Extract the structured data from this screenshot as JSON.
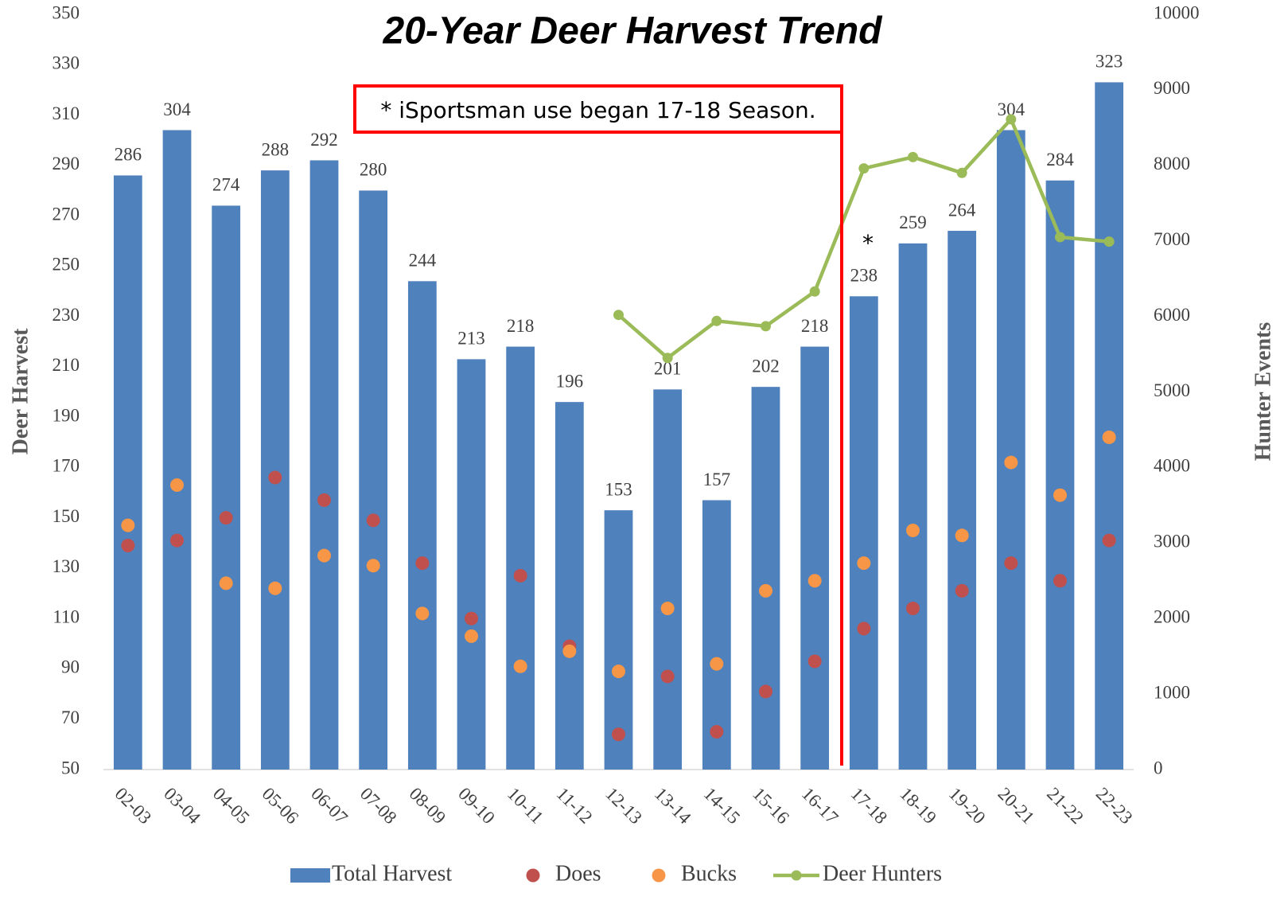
{
  "chart_data": {
    "type": "bar",
    "title": "20-Year Deer Harvest Trend",
    "ylabel": "Deer Harvest",
    "y2label": "Hunter Events",
    "categories": [
      "02-03",
      "03-04",
      "04-05",
      "05-06",
      "06-07",
      "07-08",
      "08-09",
      "09-10",
      "10-11",
      "11-12",
      "12-13",
      "13-14",
      "14-15",
      "15-16",
      "16-17",
      "17-18",
      "18-19",
      "19-20",
      "20-21",
      "21-22",
      "22-23"
    ],
    "series": [
      {
        "name": "Total Harvest",
        "type": "bar",
        "color": "#4f81bd",
        "values": [
          286,
          304,
          274,
          288,
          292,
          280,
          244,
          213,
          218,
          196,
          153,
          201,
          157,
          202,
          218,
          238,
          259,
          264,
          304,
          284,
          323
        ]
      },
      {
        "name": "Does",
        "type": "scatter",
        "color": "#c0504d",
        "values": [
          139,
          141,
          150,
          166,
          157,
          149,
          132,
          110,
          127,
          99,
          64,
          87,
          65,
          81,
          93,
          106,
          114,
          121,
          132,
          125,
          141
        ]
      },
      {
        "name": "Bucks",
        "type": "scatter",
        "color": "#f79646",
        "values": [
          147,
          163,
          124,
          122,
          135,
          131,
          112,
          103,
          91,
          97,
          89,
          114,
          92,
          121,
          125,
          132,
          145,
          143,
          172,
          159,
          182
        ]
      },
      {
        "name": "Deer Hunters",
        "type": "line",
        "axis": "y2",
        "color": "#9bbb59",
        "values": [
          null,
          null,
          null,
          null,
          null,
          null,
          null,
          null,
          null,
          null,
          6020,
          5450,
          5940,
          5870,
          6330,
          7960,
          8110,
          7900,
          8610,
          7050,
          6990
        ]
      }
    ],
    "ylim": [
      50,
      350
    ],
    "yticks": [
      50,
      70,
      90,
      110,
      130,
      150,
      170,
      190,
      210,
      230,
      250,
      270,
      290,
      310,
      330,
      350
    ],
    "y2lim": [
      0,
      10000
    ],
    "y2ticks": [
      0,
      1000,
      2000,
      3000,
      4000,
      5000,
      6000,
      7000,
      8000,
      9000,
      10000
    ],
    "annotations": [
      "* iSportsman use began 17-18 Season.",
      "*"
    ],
    "data_labels": true,
    "legend": "bottom"
  }
}
